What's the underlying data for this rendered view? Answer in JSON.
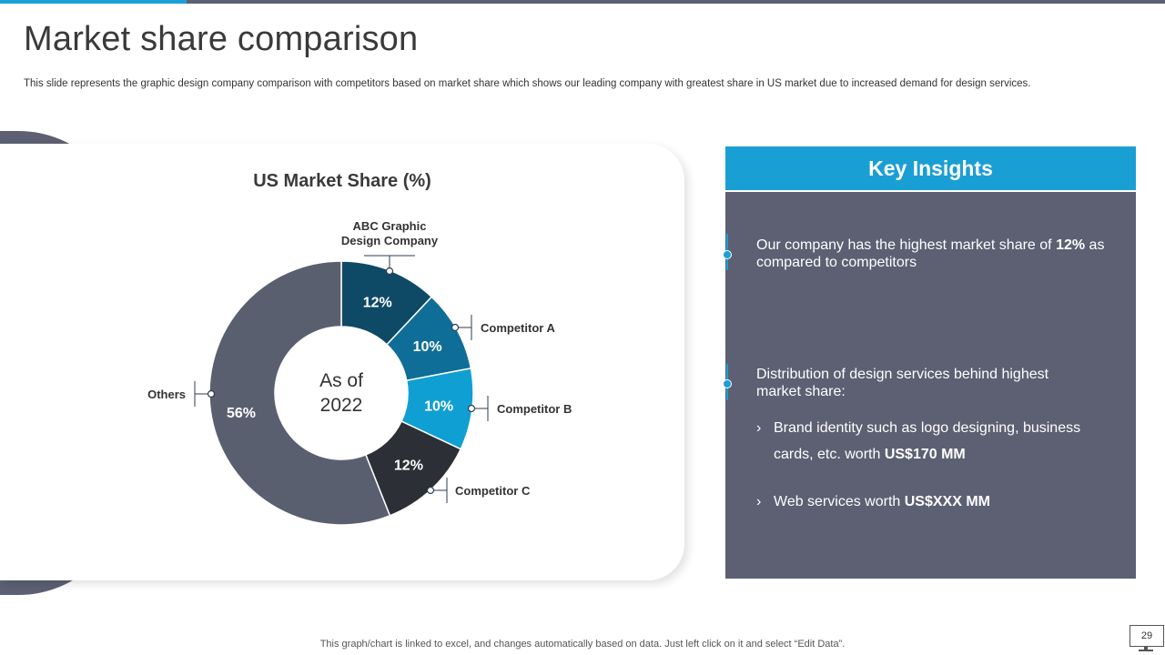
{
  "slide": {
    "title": "Market share comparison",
    "subtitle": "This slide represents the graphic design company comparison with competitors based on market share which shows our leading company with greatest share in US market due to increased demand for design services.",
    "footer_note": "This graph/chart is linked to excel, and changes automatically based on data. Just left click on it and select “Edit Data”.",
    "page_number": "29"
  },
  "colors": {
    "accent": "#1aa0d6",
    "panel": "#5c6072",
    "abc": "#0e4a66",
    "competitor_a": "#0f6e98",
    "competitor_b": "#109fd2",
    "competitor_c": "#2c2f36",
    "others": "#5a5f70"
  },
  "chart_data": {
    "type": "pie",
    "title": "US Market Share (%)",
    "center_label": [
      "As of",
      "2022"
    ],
    "slices": [
      {
        "label_lines": [
          "ABC Graphic",
          "Design Company"
        ],
        "value": 12,
        "value_label": "12%"
      },
      {
        "label_lines": [
          "Competitor A"
        ],
        "value": 10,
        "value_label": "10%"
      },
      {
        "label_lines": [
          "Competitor B"
        ],
        "value": 10,
        "value_label": "10%"
      },
      {
        "label_lines": [
          "Competitor C"
        ],
        "value": 12,
        "value_label": "12%"
      },
      {
        "label_lines": [
          "Others"
        ],
        "value": 56,
        "value_label": "56%"
      }
    ]
  },
  "insights": {
    "header": "Key Insights",
    "point1_pre": "Our company has the highest market share of ",
    "point1_bold": "12%",
    "point1_post": " as compared to competitors",
    "point2": "Distribution of design services behind highest market share:",
    "bullet_glyph": "›",
    "bullet1_text": "Brand identity such as logo designing, business cards, etc. worth ",
    "bullet1_bold": "US$170 MM",
    "bullet2_text": "Web services worth ",
    "bullet2_bold": "US$XXX MM"
  }
}
